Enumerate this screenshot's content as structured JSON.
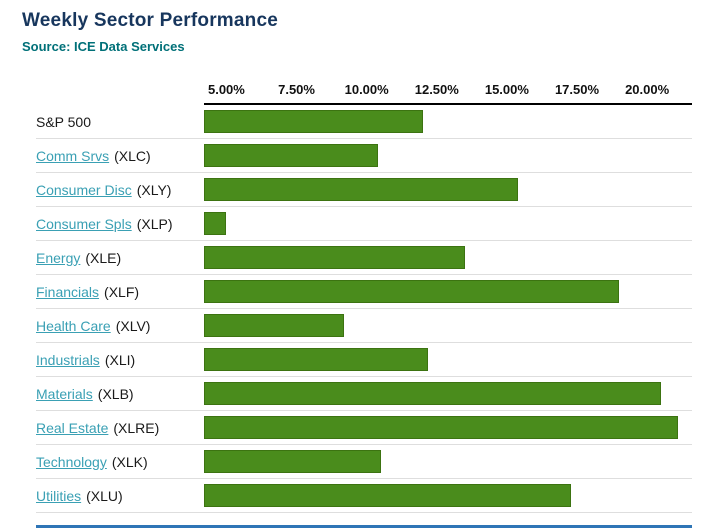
{
  "header": {
    "title": "Weekly Sector Performance",
    "source": "Source: ICE Data Services"
  },
  "colors": {
    "title_color": "#17365d",
    "source_color": "#007078",
    "link_color": "#3aa0b4",
    "bar_color": "#4a8c1c",
    "divider_color": "#2e75b6"
  },
  "chart_data": {
    "type": "bar",
    "orientation": "horizontal",
    "title": "Weekly Sector Performance",
    "subtitle": "Source: ICE Data Services",
    "xlabel": "",
    "ylabel": "",
    "grid": false,
    "legend": false,
    "axis": {
      "min": 4.2,
      "max": 21.6,
      "ticks": [
        5.0,
        7.5,
        10.0,
        12.5,
        15.0,
        17.5,
        20.0
      ],
      "tick_labels": [
        "5.00%",
        "7.50%",
        "10.00%",
        "12.50%",
        "15.00%",
        "17.50%",
        "20.00%"
      ]
    },
    "bar_color": "#4a8c1c",
    "rows": [
      {
        "label": "S&P 500",
        "ticker": "",
        "link": false,
        "value": 12.0
      },
      {
        "label": "Comm Srvs",
        "ticker": "(XLC)",
        "link": true,
        "value": 10.4
      },
      {
        "label": "Consumer Disc",
        "ticker": "(XLY)",
        "link": true,
        "value": 15.4
      },
      {
        "label": "Consumer Spls",
        "ticker": "(XLP)",
        "link": true,
        "value": 5.0
      },
      {
        "label": "Energy",
        "ticker": "(XLE)",
        "link": true,
        "value": 13.5
      },
      {
        "label": "Financials",
        "ticker": "(XLF)",
        "link": true,
        "value": 19.0
      },
      {
        "label": "Health Care",
        "ticker": "(XLV)",
        "link": true,
        "value": 9.2
      },
      {
        "label": "Industrials",
        "ticker": "(XLI)",
        "link": true,
        "value": 12.2
      },
      {
        "label": "Materials",
        "ticker": "(XLB)",
        "link": true,
        "value": 20.5
      },
      {
        "label": "Real Estate",
        "ticker": "(XLRE)",
        "link": true,
        "value": 21.1
      },
      {
        "label": "Technology",
        "ticker": "(XLK)",
        "link": true,
        "value": 10.5
      },
      {
        "label": "Utilities",
        "ticker": "(XLU)",
        "link": true,
        "value": 17.3
      }
    ]
  }
}
